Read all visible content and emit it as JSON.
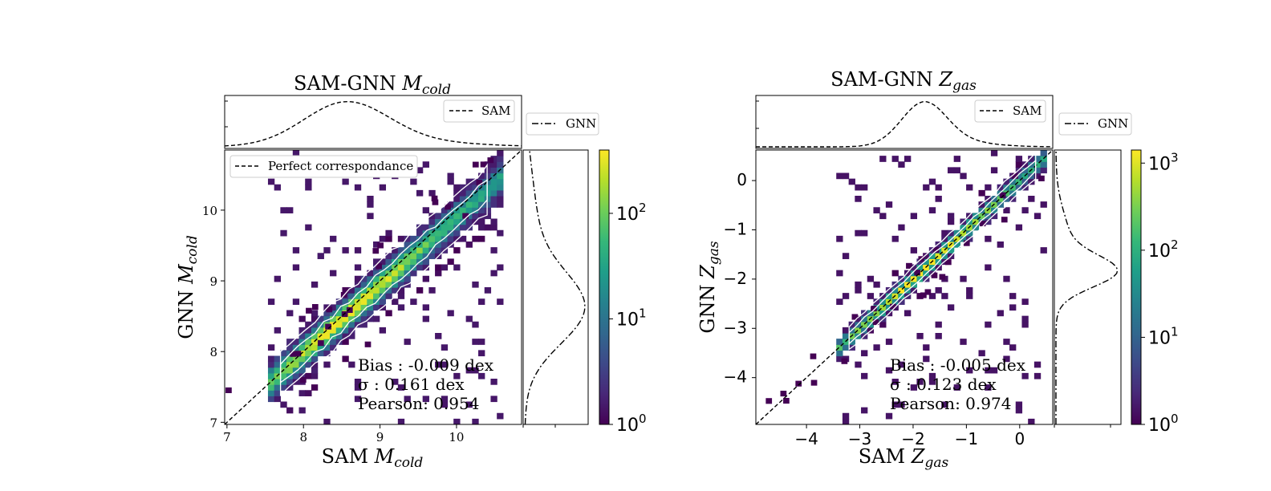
{
  "colorbar_stops": [
    "#440154",
    "#482878",
    "#3e4989",
    "#31688e",
    "#26828e",
    "#1f9e89",
    "#35b779",
    "#6ece58",
    "#b5de2b",
    "#fde725"
  ],
  "chart_data": [
    {
      "type": "heatmap",
      "title_main": "SAM-GNN ",
      "title_sym": "M",
      "title_sub": "cold",
      "xlabel_main": "SAM ",
      "xlabel_sym": "M",
      "xlabel_sub": "cold",
      "ylabel_main": "GNN ",
      "ylabel_sym": "M",
      "ylabel_sub": "cold",
      "xlim": [
        6.97,
        10.85
      ],
      "ylim": [
        6.97,
        10.85
      ],
      "xticks": [
        "7",
        "8",
        "9",
        "10"
      ],
      "yticks": [
        "7",
        "8",
        "9",
        "10"
      ],
      "grid": false,
      "identity_line": true,
      "legend_main": "Perfect correspondance",
      "legend_top": "SAM",
      "legend_right": "GNN",
      "stats": [
        "Bias : -0.009 dex",
        "σ : 0.161 dex",
        "Pearson:  0.954"
      ],
      "colorbar_ticks": [
        {
          "base": "10",
          "exp": "0",
          "value": 0
        },
        {
          "base": "10",
          "exp": "1",
          "value": 1
        },
        {
          "base": "10",
          "exp": "2",
          "value": 2
        }
      ],
      "colorbar_max_log": 2.6,
      "density_ridge": {
        "x_start": 7.55,
        "x_end": 10.55,
        "slope": 0.96,
        "intercept": 0.3,
        "peak_x": 8.6,
        "scatter": 0.16
      },
      "marginal_top": {
        "peak": 8.55,
        "width": 0.55
      },
      "marginal_right": {
        "peak": 8.6,
        "width": 0.5
      }
    },
    {
      "type": "heatmap",
      "title_main": "SAM-GNN ",
      "title_sym": "Z",
      "title_sub": "gas",
      "xlabel_main": "SAM ",
      "xlabel_sym": "Z",
      "xlabel_sub": "gas",
      "ylabel_main": "GNN ",
      "ylabel_sym": "Z",
      "ylabel_sub": "gas",
      "xlim": [
        -4.95,
        0.62
      ],
      "ylim": [
        -4.95,
        0.62
      ],
      "xticks": [
        "−4",
        "−3",
        "−2",
        "−1",
        "0"
      ],
      "yticks": [
        "−4",
        "−3",
        "−2",
        "−1",
        "0"
      ],
      "grid": false,
      "identity_line": true,
      "legend_top": "SAM",
      "legend_right": "GNN",
      "stats": [
        "Bias : -0.005 dex",
        "σ : 0.123 dex",
        "Pearson:  0.974"
      ],
      "colorbar_ticks": [
        {
          "base": "10",
          "exp": "0",
          "value": 0
        },
        {
          "base": "10",
          "exp": "1",
          "value": 1
        },
        {
          "base": "10",
          "exp": "2",
          "value": 2
        },
        {
          "base": "10",
          "exp": "3",
          "value": 3
        }
      ],
      "colorbar_max_log": 3.15,
      "density_ridge": {
        "x_start": -3.35,
        "x_end": 0.45,
        "slope": 1.0,
        "intercept": 0.0,
        "peak_x": -1.8,
        "scatter": 0.12
      },
      "marginal_top": {
        "peak": -1.8,
        "width": 0.42
      },
      "marginal_right": {
        "peak": -1.85,
        "width": 0.32
      }
    }
  ]
}
